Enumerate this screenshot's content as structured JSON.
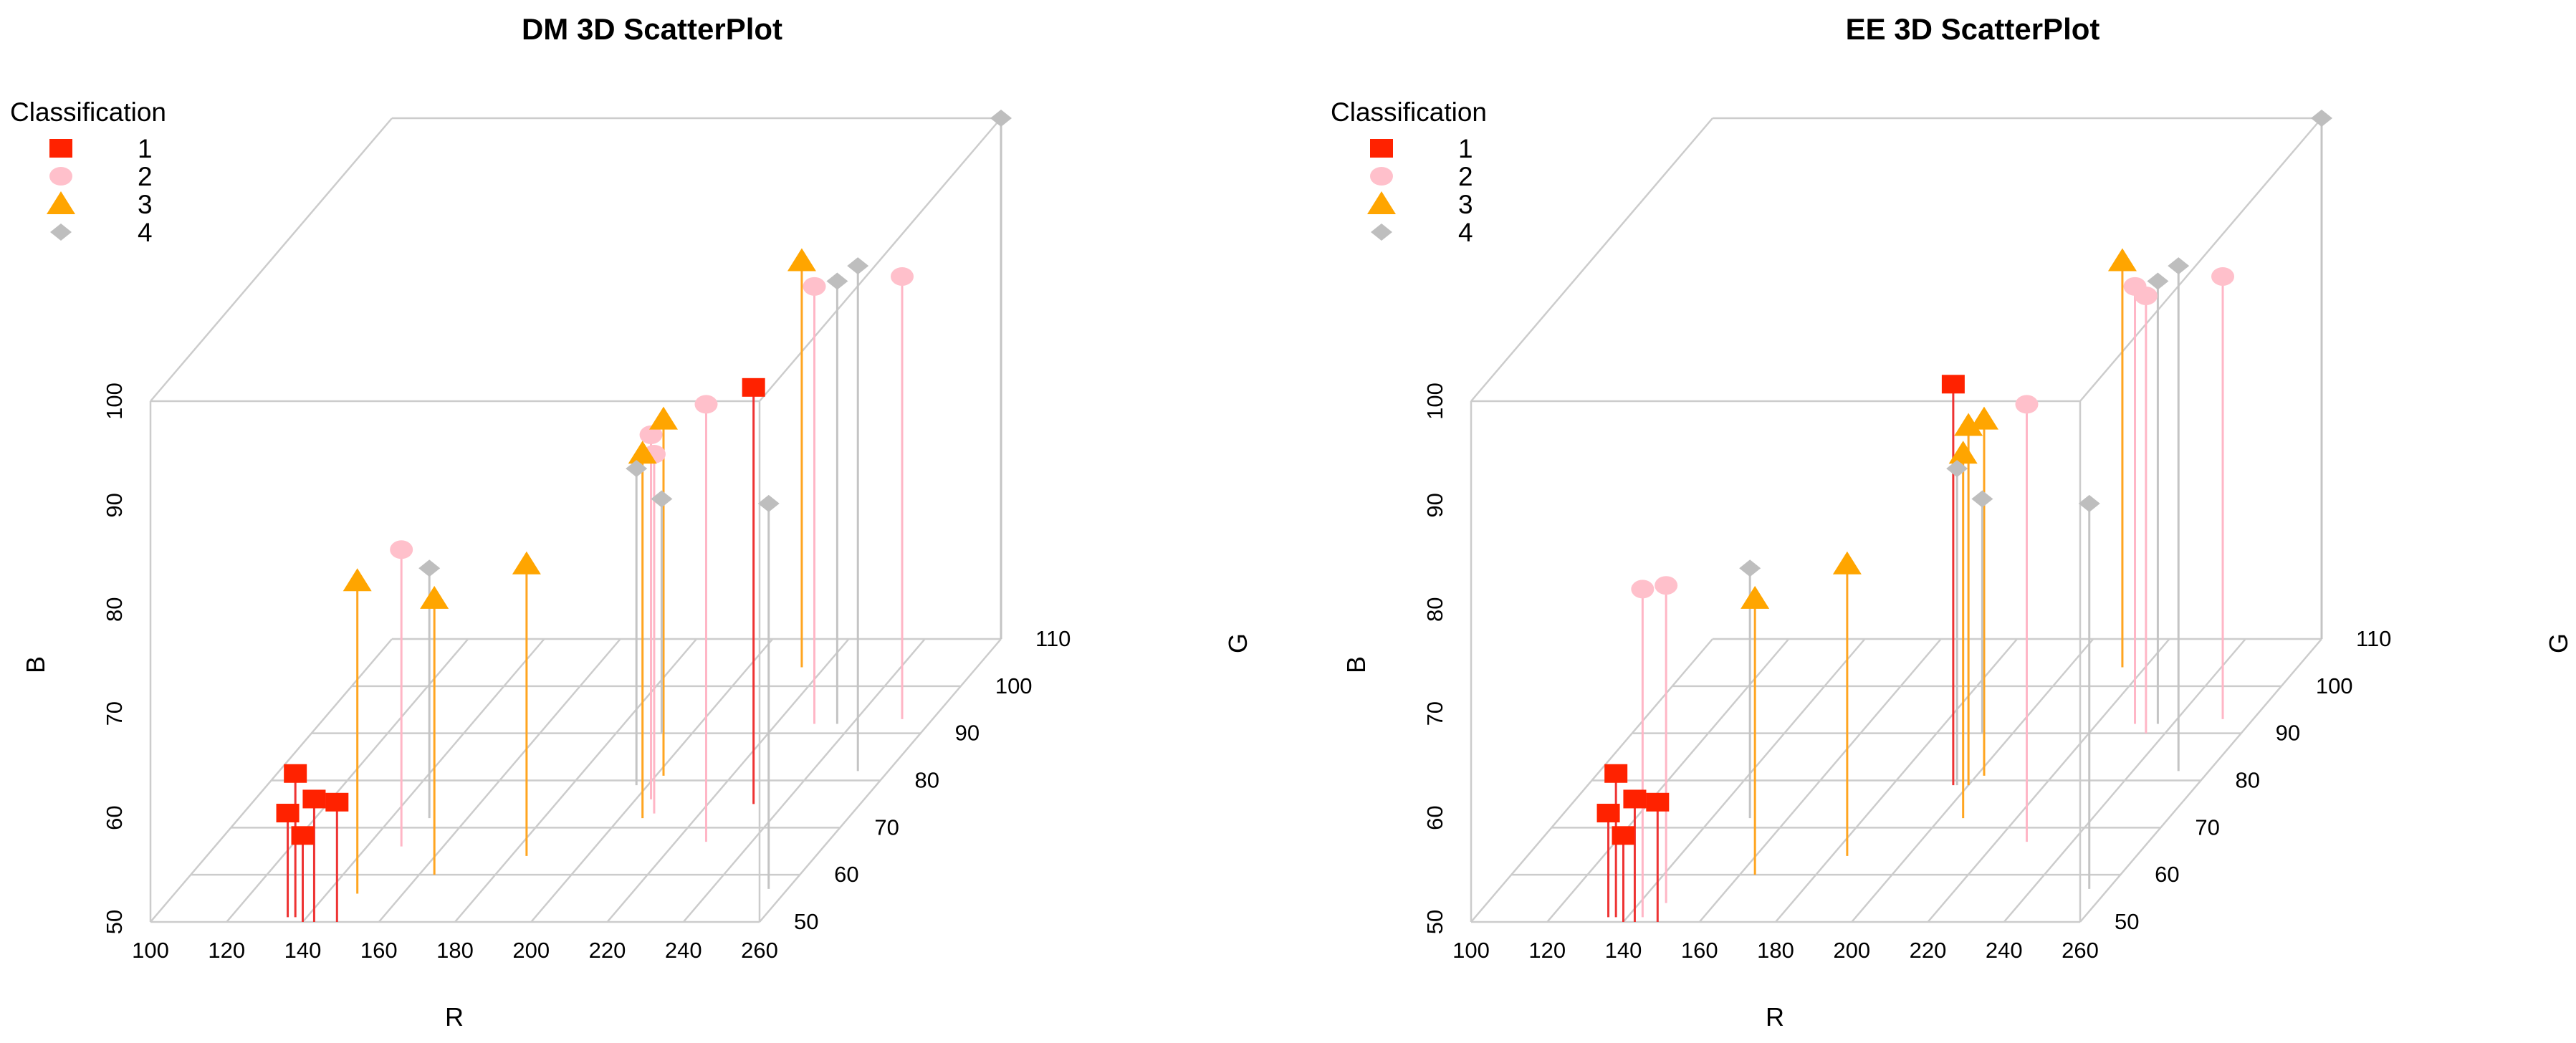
{
  "legend": {
    "title": "Classification",
    "entries": [
      {
        "label": "1",
        "shape": "square",
        "color": "#ff2200"
      },
      {
        "label": "2",
        "shape": "circle",
        "color": "#ffc0cb"
      },
      {
        "label": "3",
        "shape": "triangle",
        "color": "#ffa500"
      },
      {
        "label": "4",
        "shape": "diamond",
        "color": "#bebebe"
      }
    ]
  },
  "stem_colors": {
    "1": "#ee3333",
    "2": "#ffb6c6",
    "3": "#ffa520",
    "4": "#c4c4c4"
  },
  "axis_line_color": "#cccccc",
  "chart_data": [
    {
      "type": "scatter",
      "title": "DM 3D ScatterPlot",
      "xlabel": "R",
      "ylabel": "G",
      "zlabel": "B",
      "xlim": [
        100,
        260
      ],
      "ylim": [
        50,
        110
      ],
      "zlim": [
        50,
        100
      ],
      "xticks": [
        "100",
        "120",
        "140",
        "160",
        "180",
        "200",
        "220",
        "240",
        "260"
      ],
      "yticks": [
        "50",
        "60",
        "70",
        "80",
        "90",
        "100",
        "110"
      ],
      "zticks": [
        "50",
        "60",
        "70",
        "80",
        "90",
        "100"
      ],
      "points": [
        {
          "cls": "1",
          "R": 135,
          "G": 51,
          "B": 60.0
        },
        {
          "cls": "1",
          "R": 137,
          "G": 51,
          "B": 63.8
        },
        {
          "cls": "1",
          "R": 140,
          "G": 50,
          "B": 58.3
        },
        {
          "cls": "1",
          "R": 143,
          "G": 50,
          "B": 61.8
        },
        {
          "cls": "1",
          "R": 149,
          "G": 50,
          "B": 61.5
        },
        {
          "cls": "1",
          "R": 232,
          "G": 75,
          "B": 90.0
        },
        {
          "cls": "2",
          "R": 149,
          "G": 66,
          "B": 78.5
        },
        {
          "cls": "2",
          "R": 204,
          "G": 76,
          "B": 85.0
        },
        {
          "cls": "2",
          "R": 208,
          "G": 73,
          "B": 84.5
        },
        {
          "cls": "2",
          "R": 228,
          "G": 67,
          "B": 92.0
        },
        {
          "cls": "2",
          "R": 230,
          "G": 92,
          "B": 92.0
        },
        {
          "cls": "2",
          "R": 252,
          "G": 93,
          "B": 92.5
        },
        {
          "cls": "3",
          "R": 148,
          "G": 56,
          "B": 80.0
        },
        {
          "cls": "3",
          "R": 164,
          "G": 60,
          "B": 76.5
        },
        {
          "cls": "3",
          "R": 184,
          "G": 64,
          "B": 78.0
        },
        {
          "cls": "3",
          "R": 202,
          "G": 81,
          "B": 84.2
        },
        {
          "cls": "3",
          "R": 206,
          "G": 72,
          "B": 85.0
        },
        {
          "cls": "3",
          "R": 214,
          "G": 104,
          "B": 89.0
        },
        {
          "cls": "4",
          "R": 150,
          "G": 72,
          "B": 74.0
        },
        {
          "cls": "4",
          "R": 192,
          "G": 90,
          "B": 72.5
        },
        {
          "cls": "4",
          "R": 197,
          "G": 79,
          "B": 80.4
        },
        {
          "cls": "4",
          "R": 236,
          "G": 92,
          "B": 92.5
        },
        {
          "cls": "4",
          "R": 252,
          "G": 82,
          "B": 98.5
        },
        {
          "cls": "4",
          "R": 255,
          "G": 57,
          "B": 87.0
        },
        {
          "cls": "4",
          "R": 260,
          "G": 110,
          "B": 100.0
        }
      ]
    },
    {
      "type": "scatter",
      "title": "EE 3D ScatterPlot",
      "xlabel": "R",
      "ylabel": "G",
      "zlabel": "B",
      "xlim": [
        100,
        260
      ],
      "ylim": [
        50,
        110
      ],
      "zlim": [
        50,
        100
      ],
      "xticks": [
        "100",
        "120",
        "140",
        "160",
        "180",
        "200",
        "220",
        "240",
        "260"
      ],
      "yticks": [
        "50",
        "60",
        "70",
        "80",
        "90",
        "100",
        "110"
      ],
      "zticks": [
        "50",
        "60",
        "70",
        "80",
        "90",
        "100"
      ],
      "points": [
        {
          "cls": "1",
          "R": 135,
          "G": 51,
          "B": 60.0
        },
        {
          "cls": "1",
          "R": 137,
          "G": 51,
          "B": 63.8
        },
        {
          "cls": "1",
          "R": 140,
          "G": 50,
          "B": 58.3
        },
        {
          "cls": "1",
          "R": 143,
          "G": 50,
          "B": 61.8
        },
        {
          "cls": "1",
          "R": 149,
          "G": 50,
          "B": 61.5
        },
        {
          "cls": "1",
          "R": 196,
          "G": 79,
          "B": 88.5
        },
        {
          "cls": "2",
          "R": 144,
          "G": 51,
          "B": 81.5
        },
        {
          "cls": "2",
          "R": 147,
          "G": 54,
          "B": 80.5
        },
        {
          "cls": "2",
          "R": 228,
          "G": 67,
          "B": 92.0
        },
        {
          "cls": "2",
          "R": 230,
          "G": 92,
          "B": 92.0
        },
        {
          "cls": "2",
          "R": 235,
          "G": 90,
          "B": 92.0
        },
        {
          "cls": "2",
          "R": 252,
          "G": 93,
          "B": 92.5
        },
        {
          "cls": "3",
          "R": 164,
          "G": 60,
          "B": 76.5
        },
        {
          "cls": "3",
          "R": 184,
          "G": 64,
          "B": 78.0
        },
        {
          "cls": "3",
          "R": 200,
          "G": 79,
          "B": 84.5
        },
        {
          "cls": "3",
          "R": 202,
          "G": 81,
          "B": 84.2
        },
        {
          "cls": "3",
          "R": 206,
          "G": 72,
          "B": 85.0
        },
        {
          "cls": "3",
          "R": 214,
          "G": 104,
          "B": 89.0
        },
        {
          "cls": "4",
          "R": 150,
          "G": 72,
          "B": 74.0
        },
        {
          "cls": "4",
          "R": 192,
          "G": 90,
          "B": 72.5
        },
        {
          "cls": "4",
          "R": 197,
          "G": 79,
          "B": 80.4
        },
        {
          "cls": "4",
          "R": 236,
          "G": 92,
          "B": 92.5
        },
        {
          "cls": "4",
          "R": 252,
          "G": 82,
          "B": 98.5
        },
        {
          "cls": "4",
          "R": 255,
          "G": 57,
          "B": 87.0
        },
        {
          "cls": "4",
          "R": 260,
          "G": 110,
          "B": 100.0
        }
      ]
    }
  ]
}
